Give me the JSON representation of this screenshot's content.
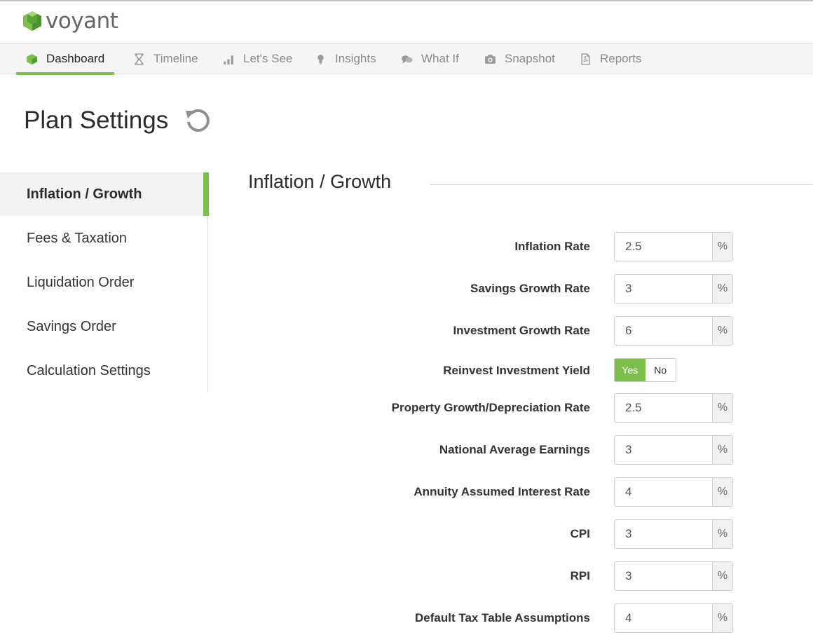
{
  "app": {
    "logo_text": "voyant"
  },
  "nav": {
    "items": [
      {
        "label": "Dashboard",
        "icon": "cube-icon",
        "active": true
      },
      {
        "label": "Timeline",
        "icon": "hourglass-icon"
      },
      {
        "label": "Let's See",
        "icon": "bar-chart-icon"
      },
      {
        "label": "Insights",
        "icon": "lightbulb-icon"
      },
      {
        "label": "What If",
        "icon": "chat-bubbles-icon"
      },
      {
        "label": "Snapshot",
        "icon": "camera-icon"
      },
      {
        "label": "Reports",
        "icon": "pdf-document-icon"
      }
    ]
  },
  "page": {
    "title": "Plan Settings",
    "reset_icon": "reset-icon"
  },
  "sidebar": {
    "items": [
      {
        "label": "Inflation / Growth",
        "active": true
      },
      {
        "label": "Fees & Taxation"
      },
      {
        "label": "Liquidation Order"
      },
      {
        "label": "Savings Order"
      },
      {
        "label": "Calculation Settings"
      }
    ]
  },
  "section": {
    "title": "Inflation / Growth",
    "fields": [
      {
        "label": "Inflation Rate",
        "value": "2.5",
        "unit": "%"
      },
      {
        "label": "Savings Growth Rate",
        "value": "3",
        "unit": "%"
      },
      {
        "label": "Investment Growth Rate",
        "value": "6",
        "unit": "%"
      },
      {
        "label": "Reinvest Investment Yield",
        "type": "toggle",
        "options": [
          "Yes",
          "No"
        ],
        "selected": "Yes"
      },
      {
        "label": "Property Growth/Depreciation Rate",
        "value": "2.5",
        "unit": "%"
      },
      {
        "label": "National Average Earnings",
        "value": "3",
        "unit": "%"
      },
      {
        "label": "Annuity Assumed Interest Rate",
        "value": "4",
        "unit": "%"
      },
      {
        "label": "CPI",
        "value": "3",
        "unit": "%"
      },
      {
        "label": "RPI",
        "value": "3",
        "unit": "%"
      },
      {
        "label": "Default Tax Table Assumptions",
        "value": "4",
        "unit": "%"
      }
    ]
  },
  "colors": {
    "accent": "#7cc04b",
    "text": "#333333",
    "muted": "#8a8a8a"
  }
}
